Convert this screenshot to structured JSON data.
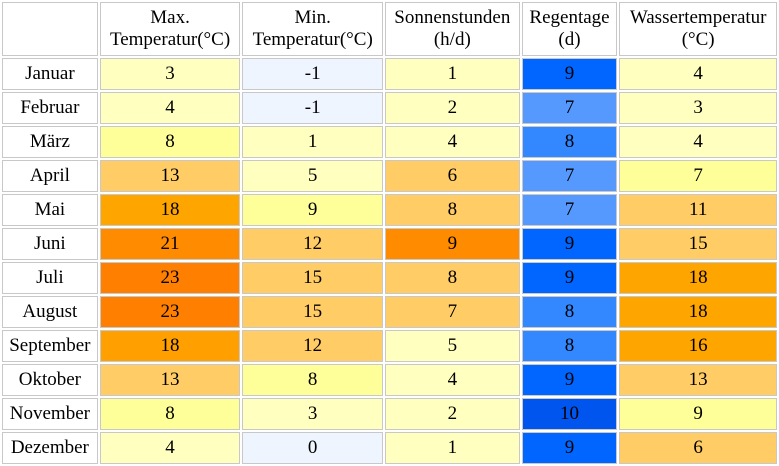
{
  "headers": [
    {
      "line1": "",
      "line2": ""
    },
    {
      "line1": "Max.",
      "line2": "Temperatur(°C)"
    },
    {
      "line1": "Min.",
      "line2": "Temperatur(°C)"
    },
    {
      "line1": "Sonnenstunden",
      "line2": "(h/d)"
    },
    {
      "line1": "Regentage",
      "line2": "(d)"
    },
    {
      "line1": "Wassertemperatur",
      "line2": "(°C)"
    }
  ],
  "rows": [
    {
      "month": "Januar",
      "max": "3",
      "min": "-1",
      "sun": "1",
      "rain": "9",
      "water": "4"
    },
    {
      "month": "Februar",
      "max": "4",
      "min": "-1",
      "sun": "2",
      "rain": "7",
      "water": "3"
    },
    {
      "month": "März",
      "max": "8",
      "min": "1",
      "sun": "4",
      "rain": "8",
      "water": "4"
    },
    {
      "month": "April",
      "max": "13",
      "min": "5",
      "sun": "6",
      "rain": "7",
      "water": "7"
    },
    {
      "month": "Mai",
      "max": "18",
      "min": "9",
      "sun": "8",
      "rain": "7",
      "water": "11"
    },
    {
      "month": "Juni",
      "max": "21",
      "min": "12",
      "sun": "9",
      "rain": "9",
      "water": "15"
    },
    {
      "month": "Juli",
      "max": "23",
      "min": "15",
      "sun": "8",
      "rain": "9",
      "water": "18"
    },
    {
      "month": "August",
      "max": "23",
      "min": "15",
      "sun": "7",
      "rain": "8",
      "water": "18"
    },
    {
      "month": "September",
      "max": "18",
      "min": "12",
      "sun": "5",
      "rain": "8",
      "water": "16"
    },
    {
      "month": "Oktober",
      "max": "13",
      "min": "8",
      "sun": "4",
      "rain": "9",
      "water": "13"
    },
    {
      "month": "November",
      "max": "8",
      "min": "3",
      "sun": "2",
      "rain": "10",
      "water": "9"
    },
    {
      "month": "Dezember",
      "max": "4",
      "min": "0",
      "sun": "1",
      "rain": "9",
      "water": "6"
    }
  ],
  "colors": {
    "max": [
      "#ffffc0",
      "#ffffc0",
      "#ffff99",
      "#ffcc66",
      "#ffa500",
      "#ff8c00",
      "#ff8000",
      "#ff8000",
      "#ffa000",
      "#ffcc66",
      "#ffff99",
      "#ffffc0"
    ],
    "min": [
      "#eef5ff",
      "#eef5ff",
      "#ffffc0",
      "#ffffc0",
      "#ffff99",
      "#ffcc66",
      "#ffcc66",
      "#ffcc66",
      "#ffcc66",
      "#ffff99",
      "#ffffc0",
      "#eef5ff"
    ],
    "sun": [
      "#ffffc0",
      "#ffffc0",
      "#ffffc0",
      "#ffcc66",
      "#ffcc66",
      "#ff8c00",
      "#ffcc66",
      "#ffcc66",
      "#ffffc0",
      "#ffffc0",
      "#ffffc0",
      "#ffffc0"
    ],
    "rain": [
      "#0066ff",
      "#5599ff",
      "#3388ff",
      "#5599ff",
      "#5599ff",
      "#0066ff",
      "#0066ff",
      "#3388ff",
      "#3388ff",
      "#0066ff",
      "#0055ee",
      "#0066ff"
    ],
    "water": [
      "#ffffc0",
      "#ffffc0",
      "#ffffc0",
      "#ffff99",
      "#ffcc66",
      "#ffcc66",
      "#ffa500",
      "#ffa500",
      "#ffa500",
      "#ffcc66",
      "#ffff99",
      "#ffcc66"
    ]
  }
}
